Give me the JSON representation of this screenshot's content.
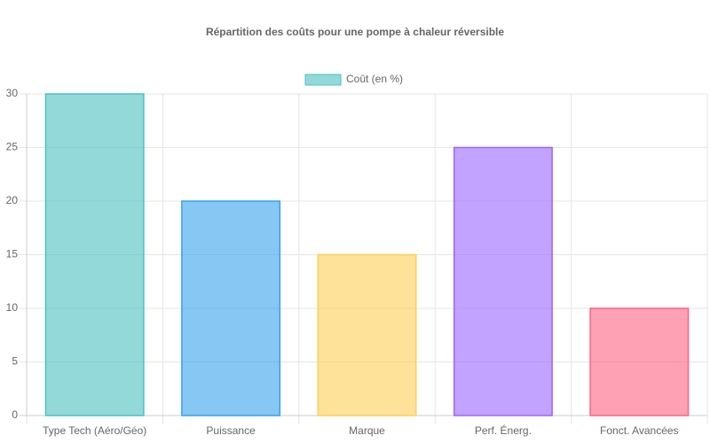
{
  "chart_data": {
    "type": "bar",
    "title": "Répartition des coûts pour une pompe à chaleur réversible",
    "categories": [
      "Type Tech (Aéro/Géo)",
      "Puissance",
      "Marque",
      "Perf. Énerg.",
      "Fonct. Avancées"
    ],
    "series": [
      {
        "name": "Coût (en %)",
        "colors": [
          "#4bc0c0",
          "#36a2eb",
          "#ffce56",
          "#9966ff",
          "#ff6384"
        ],
        "values": [
          30,
          20,
          15,
          25,
          10
        ]
      }
    ],
    "ylim": [
      0,
      30
    ],
    "yticks": [
      0,
      5,
      10,
      15,
      20,
      25,
      30
    ],
    "grid": true,
    "legend": "top"
  }
}
